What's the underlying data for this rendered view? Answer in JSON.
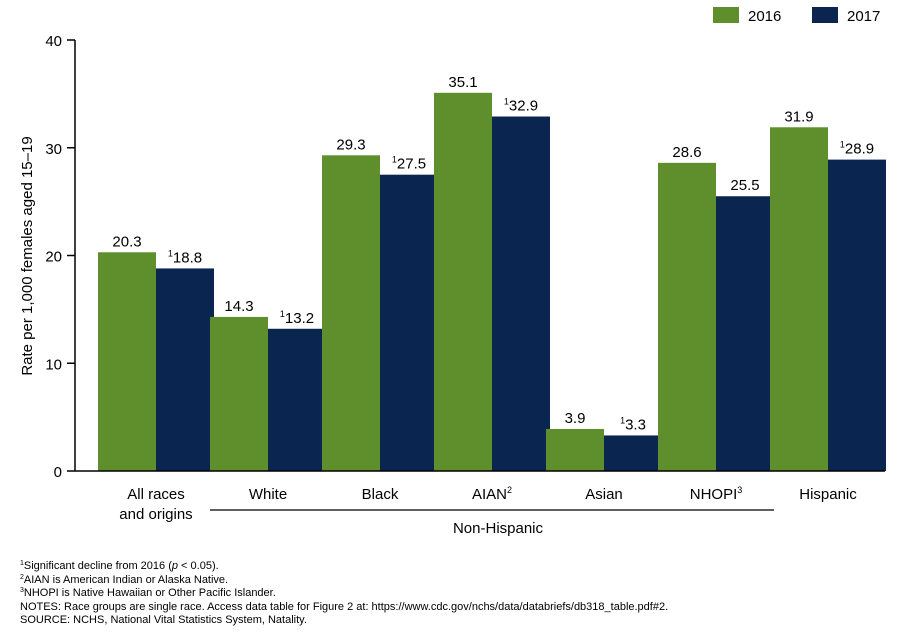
{
  "colors": {
    "s2016": "#5f8f2d",
    "s2017": "#0b2551",
    "axis": "#000000"
  },
  "chart_data": {
    "type": "bar",
    "ylabel": "Rate per 1,000 females aged 15–19",
    "ylim": [
      0,
      40
    ],
    "yticks": [
      0,
      10,
      20,
      30,
      40
    ],
    "categories": [
      {
        "label": "All races\nand origins",
        "sup": ""
      },
      {
        "label": "White",
        "sup": ""
      },
      {
        "label": "Black",
        "sup": ""
      },
      {
        "label": "AIAN",
        "sup": "2"
      },
      {
        "label": "Asian",
        "sup": ""
      },
      {
        "label": "NHOPI",
        "sup": "3"
      },
      {
        "label": "Hispanic",
        "sup": ""
      }
    ],
    "series": [
      {
        "name": "2016",
        "values": [
          20.3,
          14.3,
          29.3,
          35.1,
          3.9,
          28.6,
          31.9
        ],
        "labels": [
          "20.3",
          "14.3",
          "29.3",
          "35.1",
          "3.9",
          "28.6",
          "31.9"
        ],
        "markers": [
          "",
          "",
          "",
          "",
          "",
          "",
          ""
        ]
      },
      {
        "name": "2017",
        "values": [
          18.8,
          13.2,
          27.5,
          32.9,
          3.3,
          25.5,
          28.9
        ],
        "labels": [
          "18.8",
          "13.2",
          "27.5",
          "32.9",
          "3.3",
          "25.5",
          "28.9"
        ],
        "markers": [
          "1",
          "1",
          "1",
          "1",
          "1",
          "",
          "1"
        ]
      }
    ],
    "group_label": "Non-Hispanic",
    "group_span": [
      1,
      5
    ],
    "legend": {
      "placement": "top-right",
      "entries": [
        "2016",
        "2017"
      ]
    }
  },
  "notes": [
    {
      "sup": "1",
      "text": "Significant decline from 2016 (",
      "italic": "p",
      "rest": " < 0.05)."
    },
    {
      "sup": "2",
      "text": "AIAN is American Indian or Alaska Native.",
      "italic": "",
      "rest": ""
    },
    {
      "sup": "3",
      "text": "NHOPI is Native Hawaiian or Other Pacific Islander.",
      "italic": "",
      "rest": ""
    },
    {
      "sup": "",
      "text": "NOTES: Race groups are single race. Access data table for Figure 2 at: https://www.cdc.gov/nchs/data/databriefs/db318_table.pdf#2.",
      "italic": "",
      "rest": ""
    },
    {
      "sup": "",
      "text": "SOURCE: NCHS, National Vital Statistics System, Natality.",
      "italic": "",
      "rest": ""
    }
  ]
}
